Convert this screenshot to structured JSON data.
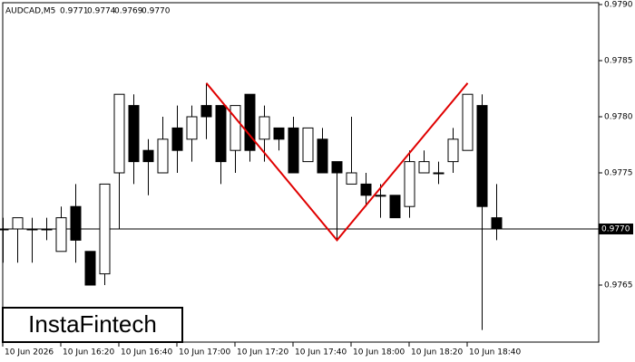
{
  "chart_data": {
    "type": "candlestick",
    "header": {
      "symbol": "AUDCAD,M5",
      "values": [
        "0.9771",
        "0.9774",
        "0.9769",
        "0.9770"
      ]
    },
    "watermark": "InstaFintech",
    "categories": [
      "10 Jun 2026",
      null,
      null,
      null,
      "10 Jun 16:20",
      null,
      null,
      null,
      "10 Jun 16:40",
      null,
      null,
      null,
      "10 Jun 17:00",
      null,
      null,
      null,
      "10 Jun 17:20",
      null,
      null,
      null,
      "10 Jun 17:40",
      null,
      null,
      null,
      "10 Jun 18:00",
      null,
      null,
      null,
      "10 Jun 18:20",
      null,
      null,
      null,
      "10 Jun 18:40",
      null,
      null
    ],
    "open": [
      0.977,
      0.977,
      0.977,
      0.977,
      0.9768,
      0.9772,
      0.9768,
      0.9766,
      0.9775,
      0.9781,
      0.9777,
      0.9775,
      0.9779,
      0.9778,
      0.9781,
      0.9781,
      0.9777,
      0.9782,
      0.9778,
      0.9779,
      0.9779,
      0.9776,
      0.9778,
      0.9776,
      0.9774,
      0.9774,
      0.9773,
      0.9773,
      0.9772,
      0.9775,
      0.9775,
      0.9776,
      0.9777,
      0.9781,
      0.9771
    ],
    "high": [
      0.9771,
      0.9771,
      0.9771,
      0.9771,
      0.9772,
      0.9774,
      0.9768,
      0.9774,
      0.9782,
      0.9782,
      0.9778,
      0.978,
      0.9781,
      0.9781,
      0.9783,
      0.9781,
      0.9781,
      0.9782,
      0.9781,
      0.9779,
      0.978,
      0.9779,
      0.9779,
      0.9776,
      0.978,
      0.9775,
      0.9774,
      0.9773,
      0.9777,
      0.9777,
      0.9776,
      0.9779,
      0.9782,
      0.9782,
      0.9774
    ],
    "low": [
      0.9767,
      0.9767,
      0.9767,
      0.9769,
      0.9768,
      0.9767,
      0.9765,
      0.9765,
      0.977,
      0.9774,
      0.9773,
      0.9775,
      0.9775,
      0.9776,
      0.9778,
      0.9774,
      0.9775,
      0.9776,
      0.9776,
      0.9777,
      0.9775,
      0.9776,
      0.9775,
      0.9769,
      0.9774,
      0.9772,
      0.9771,
      0.9771,
      0.9771,
      0.9775,
      0.9774,
      0.9775,
      0.9777,
      0.9761,
      0.9769
    ],
    "close": [
      0.977,
      0.9771,
      0.977,
      0.977,
      0.9771,
      0.9769,
      0.9765,
      0.9774,
      0.9782,
      0.9776,
      0.9776,
      0.9778,
      0.9777,
      0.978,
      0.978,
      0.9776,
      0.9781,
      0.9777,
      0.978,
      0.9778,
      0.9775,
      0.9779,
      0.9775,
      0.9775,
      0.9775,
      0.9773,
      0.9773,
      0.9771,
      0.9776,
      0.9776,
      0.9775,
      0.9778,
      0.9782,
      0.9772,
      0.977
    ],
    "ylim": [
      0.976,
      0.979
    ],
    "yticks": [
      0.9765,
      {
        "value": 0.977,
        "label": "0.9770"
      },
      0.9775,
      {
        "value": 0.978,
        "label": "0.9780"
      },
      0.9785,
      {
        "value": 0.979,
        "label": "0.9790"
      }
    ],
    "price_line": {
      "value": 0.977,
      "label": "0.9770"
    },
    "pattern_line": {
      "color": "#e00000",
      "index": [
        14,
        23,
        32
      ],
      "values": [
        0.9783,
        0.9769,
        0.9783
      ]
    }
  }
}
